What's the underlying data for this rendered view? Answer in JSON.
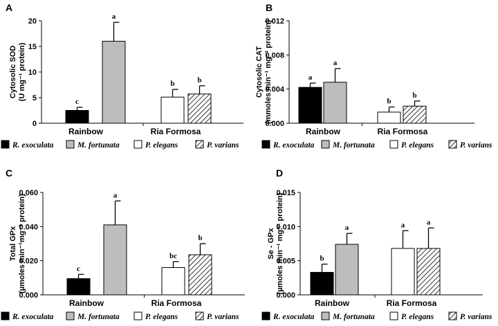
{
  "legend": [
    {
      "name": "R. exoculata",
      "fill": "#000000",
      "pattern": "solid"
    },
    {
      "name": "M. fortunata",
      "fill": "#bdbdbd",
      "pattern": "solid"
    },
    {
      "name": "P. elegans",
      "fill": "#ffffff",
      "pattern": "solid"
    },
    {
      "name": "P. varians",
      "fill": "#ffffff",
      "pattern": "hatch"
    }
  ],
  "chart_data": [
    {
      "panel": "A",
      "type": "bar",
      "ylabel_line1": "Cytosolic SOD",
      "ylabel_line2": "(U mg⁻¹ protein)",
      "ylim": [
        0,
        20
      ],
      "yticks": [
        "0",
        "5",
        "10",
        "15",
        "20"
      ],
      "categories": [
        "Rainbow",
        "Ria Formosa"
      ],
      "series": [
        {
          "name": "R. exoculata",
          "category": "Rainbow",
          "value": 2.5,
          "error": 0.6,
          "label": "c"
        },
        {
          "name": "M. fortunata",
          "category": "Rainbow",
          "value": 16.0,
          "error": 3.7,
          "label": "a"
        },
        {
          "name": "P. elegans",
          "category": "Ria Formosa",
          "value": 5.1,
          "error": 1.5,
          "label": "b"
        },
        {
          "name": "P. varians",
          "category": "Ria Formosa",
          "value": 5.7,
          "error": 1.6,
          "label": "b"
        }
      ]
    },
    {
      "panel": "B",
      "type": "bar",
      "ylabel_line1": "Cytosolic CAT",
      "ylabel_line2": "(mmoles min⁻¹ mg⁻¹ protein)",
      "ylim": [
        0,
        0.012
      ],
      "yticks": [
        "0.000",
        "0.004",
        "0.008",
        "0.012"
      ],
      "categories": [
        "Rainbow",
        "Ria Formosa"
      ],
      "series": [
        {
          "name": "R. exoculata",
          "category": "Rainbow",
          "value": 0.0042,
          "error": 0.0005,
          "label": "a"
        },
        {
          "name": "M. fortunata",
          "category": "Rainbow",
          "value": 0.0048,
          "error": 0.0016,
          "label": "a"
        },
        {
          "name": "P. elegans",
          "category": "Ria Formosa",
          "value": 0.0013,
          "error": 0.0006,
          "label": "b"
        },
        {
          "name": "P. varians",
          "category": "Ria Formosa",
          "value": 0.002,
          "error": 0.0006,
          "label": "b"
        }
      ]
    },
    {
      "panel": "C",
      "type": "bar",
      "ylabel_line1": "Total GPx",
      "ylabel_line2": "(µmoles min⁻¹mg⁻¹ protein)",
      "ylim": [
        0,
        0.06
      ],
      "yticks": [
        "0.000",
        "0.020",
        "0.040",
        "0.060"
      ],
      "categories": [
        "Rainbow",
        "Ria Formosa"
      ],
      "series": [
        {
          "name": "R. exoculata",
          "category": "Rainbow",
          "value": 0.0095,
          "error": 0.0025,
          "label": "c"
        },
        {
          "name": "M. fortunata",
          "category": "Rainbow",
          "value": 0.041,
          "error": 0.014,
          "label": "a"
        },
        {
          "name": "P. elegans",
          "category": "Ria Formosa",
          "value": 0.016,
          "error": 0.0035,
          "label": "bc"
        },
        {
          "name": "P. varians",
          "category": "Ria Formosa",
          "value": 0.0235,
          "error": 0.0065,
          "label": "b"
        }
      ]
    },
    {
      "panel": "D",
      "type": "bar",
      "ylabel_line1": "Se - GPx",
      "ylabel_line2": "(µmoles min⁻¹ mg⁻¹ protein)",
      "ylim": [
        0,
        0.015
      ],
      "yticks": [
        "0.000",
        "0.005",
        "0.010",
        "0.015"
      ],
      "categories": [
        "Rainbow",
        "Ria Formosa"
      ],
      "series": [
        {
          "name": "R. exoculata",
          "category": "Rainbow",
          "value": 0.0033,
          "error": 0.0012,
          "label": "b"
        },
        {
          "name": "M. fortunata",
          "category": "Rainbow",
          "value": 0.0074,
          "error": 0.0016,
          "label": "a"
        },
        {
          "name": "P. elegans",
          "category": "Ria Formosa",
          "value": 0.0068,
          "error": 0.0026,
          "label": "a"
        },
        {
          "name": "P. varians",
          "category": "Ria Formosa",
          "value": 0.0068,
          "error": 0.003,
          "label": "a"
        }
      ]
    }
  ]
}
